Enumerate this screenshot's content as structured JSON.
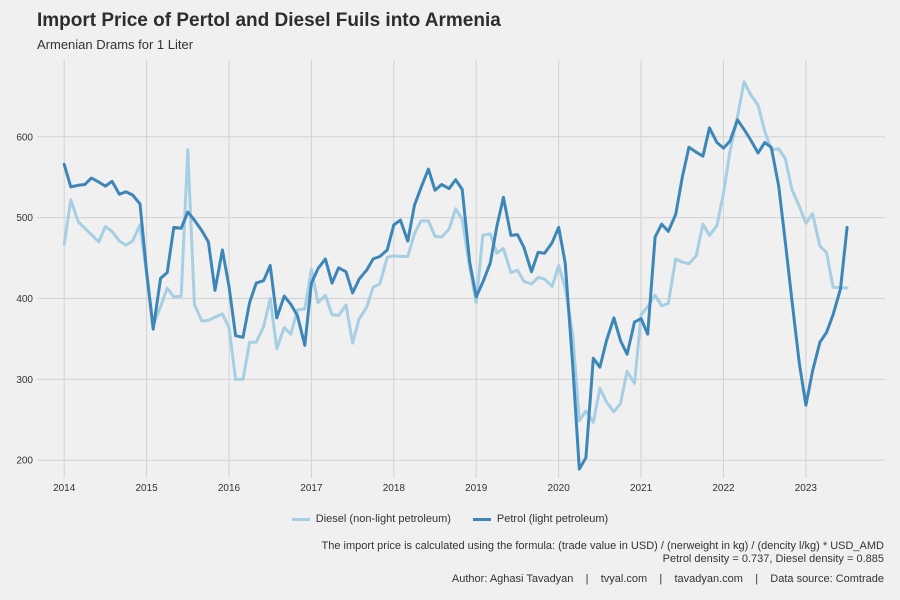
{
  "chart_data": {
    "type": "line",
    "title": "Import Price of Pertol and Diesel Fuils into Armenia",
    "subtitle": "Armenian Drams for 1 Liter",
    "xlabel": "",
    "ylabel": "",
    "x_ticks": [
      "2014",
      "2015",
      "2016",
      "2017",
      "2018",
      "2019",
      "2020",
      "2021",
      "2022",
      "2023"
    ],
    "y_ticks": [
      200,
      300,
      400,
      500,
      600
    ],
    "xlim": [
      2013.67,
      2023.96
    ],
    "ylim": [
      178,
      695
    ],
    "grid": true,
    "legend_position": "bottom",
    "series": [
      {
        "name": "Diesel (non-light petroleum)",
        "color": "#a6cfe3",
        "points": [
          [
            2014.0,
            467
          ],
          [
            2014.08,
            522
          ],
          [
            2014.17,
            495
          ],
          [
            2014.25,
            487
          ],
          [
            2014.33,
            479
          ],
          [
            2014.42,
            470
          ],
          [
            2014.5,
            489
          ],
          [
            2014.58,
            483
          ],
          [
            2014.67,
            471
          ],
          [
            2014.75,
            466
          ],
          [
            2014.83,
            471
          ],
          [
            2014.92,
            491
          ],
          [
            2015.0,
            430
          ],
          [
            2015.08,
            367
          ],
          [
            2015.17,
            390
          ],
          [
            2015.25,
            413
          ],
          [
            2015.33,
            402
          ],
          [
            2015.42,
            403
          ],
          [
            2015.5,
            584
          ],
          [
            2015.58,
            393
          ],
          [
            2015.67,
            372
          ],
          [
            2015.75,
            373
          ],
          [
            2015.83,
            377
          ],
          [
            2015.92,
            381
          ],
          [
            2016.0,
            364
          ],
          [
            2016.08,
            300
          ],
          [
            2016.17,
            300
          ],
          [
            2016.25,
            346
          ],
          [
            2016.33,
            346
          ],
          [
            2016.42,
            365
          ],
          [
            2016.5,
            400
          ],
          [
            2016.58,
            338
          ],
          [
            2016.67,
            364
          ],
          [
            2016.75,
            356
          ],
          [
            2016.83,
            386
          ],
          [
            2016.92,
            387
          ],
          [
            2017.0,
            436
          ],
          [
            2017.08,
            395
          ],
          [
            2017.17,
            404
          ],
          [
            2017.25,
            380
          ],
          [
            2017.33,
            379
          ],
          [
            2017.42,
            392
          ],
          [
            2017.5,
            345
          ],
          [
            2017.58,
            375
          ],
          [
            2017.67,
            389
          ],
          [
            2017.75,
            414
          ],
          [
            2017.83,
            418
          ],
          [
            2017.92,
            451
          ],
          [
            2018.0,
            453
          ],
          [
            2018.08,
            452
          ],
          [
            2018.17,
            452
          ],
          [
            2018.25,
            480
          ],
          [
            2018.33,
            496
          ],
          [
            2018.42,
            496
          ],
          [
            2018.5,
            477
          ],
          [
            2018.58,
            476
          ],
          [
            2018.67,
            486
          ],
          [
            2018.75,
            511
          ],
          [
            2018.83,
            498
          ],
          [
            2018.92,
            439
          ],
          [
            2019.0,
            395
          ],
          [
            2019.08,
            478
          ],
          [
            2019.17,
            480
          ],
          [
            2019.25,
            456
          ],
          [
            2019.33,
            462
          ],
          [
            2019.42,
            432
          ],
          [
            2019.5,
            435
          ],
          [
            2019.58,
            421
          ],
          [
            2019.67,
            418
          ],
          [
            2019.75,
            426
          ],
          [
            2019.83,
            424
          ],
          [
            2019.92,
            415
          ],
          [
            2020.0,
            441
          ],
          [
            2020.08,
            413
          ],
          [
            2020.17,
            356
          ],
          [
            2020.25,
            249
          ],
          [
            2020.33,
            261
          ],
          [
            2020.42,
            247
          ],
          [
            2020.5,
            289
          ],
          [
            2020.58,
            272
          ],
          [
            2020.67,
            260
          ],
          [
            2020.75,
            270
          ],
          [
            2020.83,
            310
          ],
          [
            2020.92,
            295
          ],
          [
            2021.0,
            380
          ],
          [
            2021.08,
            390
          ],
          [
            2021.17,
            404
          ],
          [
            2021.25,
            391
          ],
          [
            2021.33,
            394
          ],
          [
            2021.42,
            449
          ],
          [
            2021.5,
            445
          ],
          [
            2021.58,
            443
          ],
          [
            2021.67,
            453
          ],
          [
            2021.75,
            492
          ],
          [
            2021.83,
            478
          ],
          [
            2021.92,
            490
          ],
          [
            2022.0,
            530
          ],
          [
            2022.08,
            583
          ],
          [
            2022.17,
            625
          ],
          [
            2022.25,
            668
          ],
          [
            2022.33,
            652
          ],
          [
            2022.42,
            639
          ],
          [
            2022.5,
            607
          ],
          [
            2022.58,
            584
          ],
          [
            2022.67,
            585
          ],
          [
            2022.75,
            573
          ],
          [
            2022.83,
            535
          ],
          [
            2022.92,
            514
          ],
          [
            2023.0,
            493
          ],
          [
            2023.08,
            505
          ],
          [
            2023.17,
            465
          ],
          [
            2023.25,
            457
          ],
          [
            2023.33,
            414
          ],
          [
            2023.5,
            413
          ]
        ]
      },
      {
        "name": "Petrol (light petroleum)",
        "color": "#3d87b8",
        "points": [
          [
            2014.0,
            566
          ],
          [
            2014.08,
            538
          ],
          [
            2014.17,
            540
          ],
          [
            2014.25,
            541
          ],
          [
            2014.33,
            549
          ],
          [
            2014.42,
            544
          ],
          [
            2014.5,
            539
          ],
          [
            2014.58,
            545
          ],
          [
            2014.67,
            529
          ],
          [
            2014.75,
            532
          ],
          [
            2014.83,
            528
          ],
          [
            2014.92,
            517
          ],
          [
            2015.0,
            433
          ],
          [
            2015.08,
            362
          ],
          [
            2015.17,
            425
          ],
          [
            2015.25,
            432
          ],
          [
            2015.33,
            488
          ],
          [
            2015.42,
            487
          ],
          [
            2015.5,
            507
          ],
          [
            2015.58,
            497
          ],
          [
            2015.67,
            484
          ],
          [
            2015.75,
            470
          ],
          [
            2015.83,
            410
          ],
          [
            2015.92,
            460
          ],
          [
            2016.0,
            415
          ],
          [
            2016.08,
            354
          ],
          [
            2016.17,
            352
          ],
          [
            2016.25,
            395
          ],
          [
            2016.33,
            419
          ],
          [
            2016.42,
            422
          ],
          [
            2016.5,
            441
          ],
          [
            2016.58,
            376
          ],
          [
            2016.67,
            403
          ],
          [
            2016.75,
            393
          ],
          [
            2016.83,
            379
          ],
          [
            2016.92,
            342
          ],
          [
            2017.0,
            419
          ],
          [
            2017.08,
            437
          ],
          [
            2017.17,
            449
          ],
          [
            2017.25,
            419
          ],
          [
            2017.33,
            438
          ],
          [
            2017.42,
            433
          ],
          [
            2017.5,
            407
          ],
          [
            2017.58,
            424
          ],
          [
            2017.67,
            435
          ],
          [
            2017.75,
            449
          ],
          [
            2017.83,
            452
          ],
          [
            2017.92,
            460
          ],
          [
            2018.0,
            491
          ],
          [
            2018.08,
            497
          ],
          [
            2018.17,
            471
          ],
          [
            2018.25,
            515
          ],
          [
            2018.33,
            537
          ],
          [
            2018.42,
            560
          ],
          [
            2018.5,
            534
          ],
          [
            2018.58,
            541
          ],
          [
            2018.67,
            536
          ],
          [
            2018.75,
            547
          ],
          [
            2018.83,
            535
          ],
          [
            2018.92,
            445
          ],
          [
            2019.0,
            402
          ],
          [
            2019.08,
            420
          ],
          [
            2019.17,
            444
          ],
          [
            2019.25,
            489
          ],
          [
            2019.33,
            525
          ],
          [
            2019.42,
            478
          ],
          [
            2019.5,
            479
          ],
          [
            2019.58,
            463
          ],
          [
            2019.67,
            433
          ],
          [
            2019.75,
            457
          ],
          [
            2019.83,
            456
          ],
          [
            2019.92,
            469
          ],
          [
            2020.0,
            488
          ],
          [
            2020.08,
            444
          ],
          [
            2020.17,
            318
          ],
          [
            2020.25,
            189
          ],
          [
            2020.33,
            203
          ],
          [
            2020.42,
            326
          ],
          [
            2020.5,
            315
          ],
          [
            2020.58,
            348
          ],
          [
            2020.67,
            376
          ],
          [
            2020.75,
            348
          ],
          [
            2020.83,
            331
          ],
          [
            2020.92,
            371
          ],
          [
            2021.0,
            375
          ],
          [
            2021.08,
            356
          ],
          [
            2021.17,
            476
          ],
          [
            2021.25,
            492
          ],
          [
            2021.33,
            483
          ],
          [
            2021.42,
            504
          ],
          [
            2021.5,
            550
          ],
          [
            2021.58,
            587
          ],
          [
            2021.67,
            581
          ],
          [
            2021.75,
            576
          ],
          [
            2021.83,
            611
          ],
          [
            2021.92,
            593
          ],
          [
            2022.0,
            586
          ],
          [
            2022.08,
            595
          ],
          [
            2022.17,
            621
          ],
          [
            2022.25,
            609
          ],
          [
            2022.33,
            596
          ],
          [
            2022.42,
            580
          ],
          [
            2022.5,
            593
          ],
          [
            2022.58,
            587
          ],
          [
            2022.67,
            539
          ],
          [
            2022.75,
            470
          ],
          [
            2022.83,
            398
          ],
          [
            2022.92,
            320
          ],
          [
            2023.0,
            268
          ],
          [
            2023.08,
            310
          ],
          [
            2023.17,
            346
          ],
          [
            2023.25,
            358
          ],
          [
            2023.33,
            380
          ],
          [
            2023.42,
            412
          ],
          [
            2023.5,
            488
          ]
        ]
      }
    ]
  },
  "caption": {
    "formula": "The import price is calculated using the formula: (trade value in USD) / (nerweight in kg) / (dencity l/kg) * USD_AMD",
    "density": "Petrol density = 0.737, Diesel density = 0.885",
    "credits": "Author: Aghasi Tavadyan    |    tvyal.com    |    tavadyan.com    |    Data source: Comtrade"
  }
}
